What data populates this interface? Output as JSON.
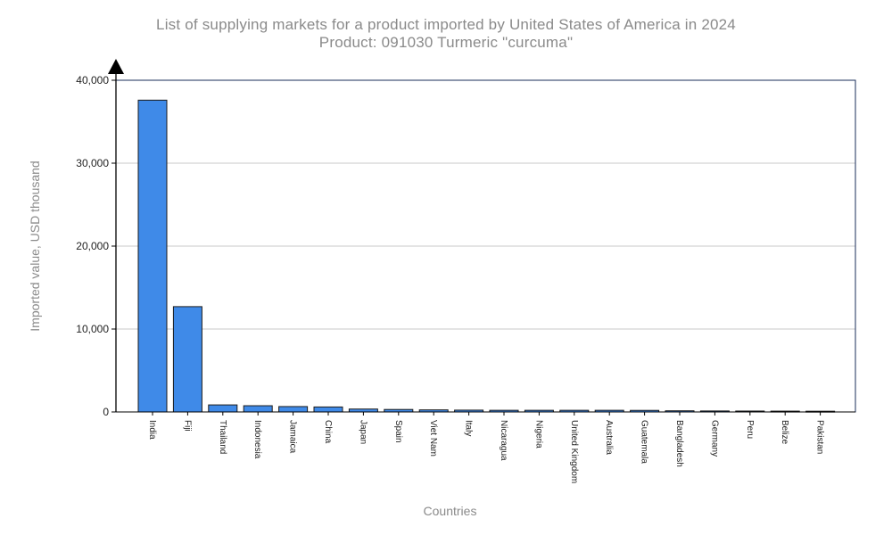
{
  "chart_data": {
    "type": "bar",
    "title": "List of supplying markets for a product imported by United States of America in 2024",
    "subtitle": "Product: 091030 Turmeric \"curcuma\"",
    "xlabel": "Countries",
    "ylabel": "Imported value, USD thousand",
    "ylim": [
      0,
      40000
    ],
    "yticks": [
      0,
      10000,
      20000,
      30000,
      40000
    ],
    "ytick_labels": [
      "0",
      "10,000",
      "20,000",
      "30,000",
      "40,000"
    ],
    "grid": true,
    "categories": [
      "India",
      "Fiji",
      "Thailand",
      "Indonesia",
      "Jamaica",
      "China",
      "Japan",
      "Spain",
      "Viet Nam",
      "Italy",
      "Nicaragua",
      "Nigeria",
      "United Kingdom",
      "Australia",
      "Guatemala",
      "Bangladesh",
      "Germany",
      "Peru",
      "Belize",
      "Pakistan"
    ],
    "values": [
      37600,
      12700,
      850,
      750,
      650,
      600,
      350,
      300,
      250,
      220,
      200,
      200,
      200,
      200,
      190,
      140,
      120,
      110,
      100,
      90
    ],
    "bar_color": "#3f8ae8"
  }
}
